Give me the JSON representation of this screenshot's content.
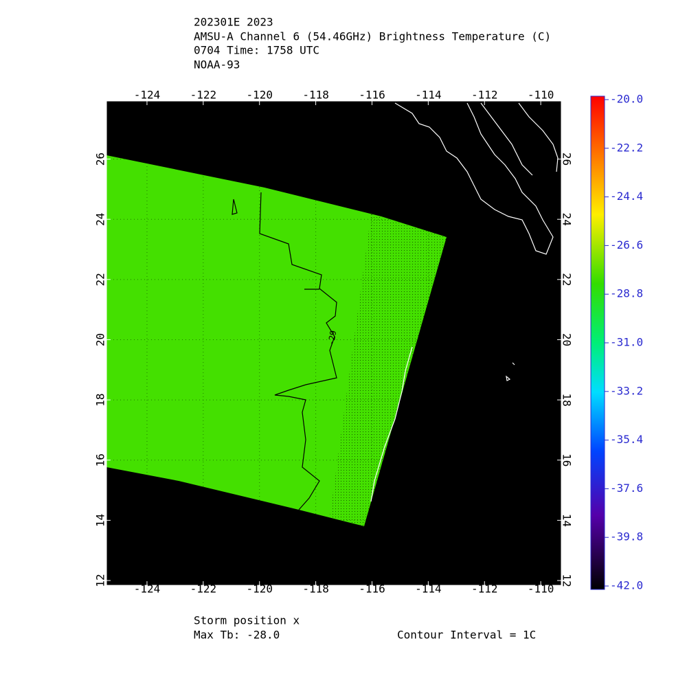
{
  "header": {
    "lines": [
      "202301E 2023",
      "AMSU-A Channel 6 (54.46GHz) Brightness Temperature (C)",
      "0704 Time: 1758 UTC",
      "NOAA-93"
    ]
  },
  "map": {
    "lon_range": [
      -125.44,
      -109.27
    ],
    "lat_range": [
      11.84,
      27.93
    ],
    "lon_ticks": [
      -124,
      -122,
      -120,
      -118,
      -116,
      -114,
      -112,
      -110
    ],
    "lat_ticks": [
      12,
      14,
      16,
      18,
      20,
      22,
      24,
      26
    ],
    "contour_label": "-29"
  },
  "colorbar": {
    "range": [
      -42,
      -20
    ],
    "ticks": [
      {
        "value": -20,
        "label": "-20.0"
      },
      {
        "value": -22.2,
        "label": "-22.2"
      },
      {
        "value": -24.4,
        "label": "-24.4"
      },
      {
        "value": -26.6,
        "label": "-26.6"
      },
      {
        "value": -28.8,
        "label": "-28.8"
      },
      {
        "value": -31,
        "label": "-31.0"
      },
      {
        "value": -33.2,
        "label": "-33.2"
      },
      {
        "value": -35.4,
        "label": "-35.4"
      },
      {
        "value": -37.6,
        "label": "-37.6"
      },
      {
        "value": -39.8,
        "label": "-39.8"
      },
      {
        "value": -42,
        "label": "-42.0"
      }
    ]
  },
  "footer": {
    "storm_position": "Storm position x",
    "max_tb": "Max Tb: -28.0",
    "contour_interval": "Contour Interval = 1C"
  }
}
